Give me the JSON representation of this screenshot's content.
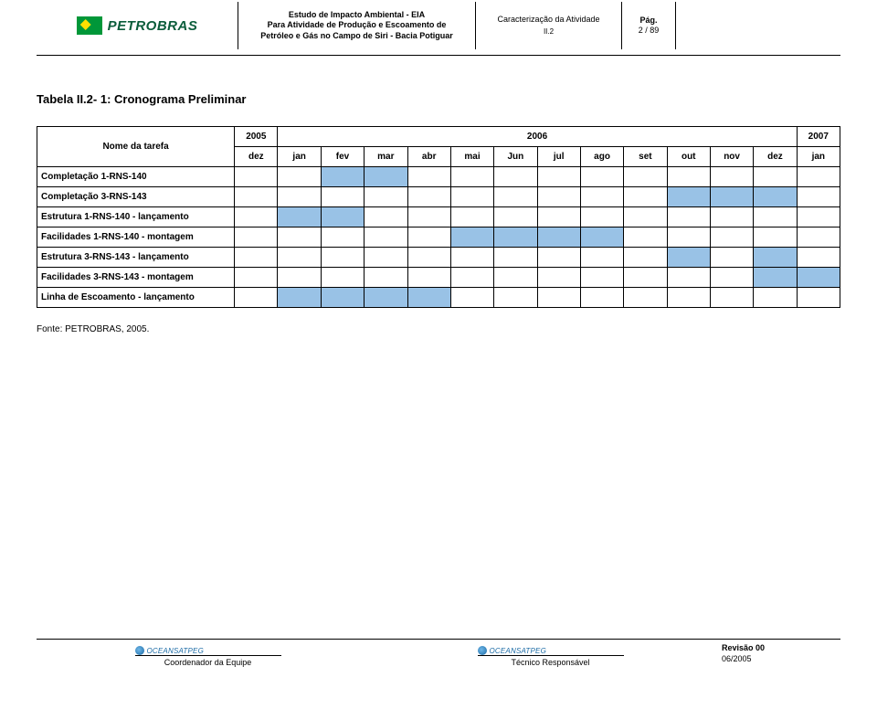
{
  "header": {
    "logo_name": "PETROBRAS",
    "doc_title_l1": "Estudo de Impacto Ambiental - EIA",
    "doc_title_l2": "Para Atividade de Produção e Escoamento de",
    "doc_title_l3": "Petróleo e Gás no Campo de Siri - Bacia Potiguar",
    "section_title": "Caracterização da Atividade",
    "section_code": "II.2",
    "page_label": "Pág.",
    "page_num": "2 / 89"
  },
  "table_title": "Tabela II.2- 1: Cronograma Preliminar",
  "gantt": {
    "task_header": "Nome da tarefa",
    "year_groups": [
      {
        "label": "2005",
        "span": 1
      },
      {
        "label": "2006",
        "span": 12
      },
      {
        "label": "2007",
        "span": 1
      }
    ],
    "months": [
      "dez",
      "jan",
      "fev",
      "mar",
      "abr",
      "mai",
      "Jun",
      "jul",
      "ago",
      "set",
      "out",
      "nov",
      "dez",
      "jan"
    ],
    "rows": [
      {
        "task": "Completação 1-RNS-140",
        "fill": [
          0,
          0,
          1,
          1,
          0,
          0,
          0,
          0,
          0,
          0,
          0,
          0,
          0,
          0
        ]
      },
      {
        "task": "Completação 3-RNS-143",
        "fill": [
          0,
          0,
          0,
          0,
          0,
          0,
          0,
          0,
          0,
          0,
          1,
          1,
          1,
          0
        ]
      },
      {
        "task": "Estrutura 1-RNS-140 - lançamento",
        "fill": [
          0,
          1,
          1,
          0,
          0,
          0,
          0,
          0,
          0,
          0,
          0,
          0,
          0,
          0
        ]
      },
      {
        "task": "Facilidades 1-RNS-140 - montagem",
        "fill": [
          0,
          0,
          0,
          0,
          0,
          1,
          1,
          1,
          1,
          0,
          0,
          0,
          0,
          0
        ]
      },
      {
        "task": "Estrutura 3-RNS-143 - lançamento",
        "fill": [
          0,
          0,
          0,
          0,
          0,
          0,
          0,
          0,
          0,
          0,
          1,
          0,
          1,
          0
        ]
      },
      {
        "task": "Facilidades 3-RNS-143 - montagem",
        "fill": [
          0,
          0,
          0,
          0,
          0,
          0,
          0,
          0,
          0,
          0,
          0,
          0,
          1,
          1
        ]
      },
      {
        "task": "Linha de Escoamento - lançamento",
        "fill": [
          0,
          1,
          1,
          1,
          1,
          0,
          0,
          0,
          0,
          0,
          0,
          0,
          0,
          0
        ]
      }
    ],
    "fill_color": "#99c2e6",
    "border_color": "#000000"
  },
  "fonte": "Fonte: PETROBRAS, 2005.",
  "footer": {
    "sig_brand": "OCEANSATPEG",
    "coord": "Coordenador da Equipe",
    "tech": "Técnico Responsável",
    "rev_l1": "Revisão 00",
    "rev_l2": "06/2005"
  }
}
